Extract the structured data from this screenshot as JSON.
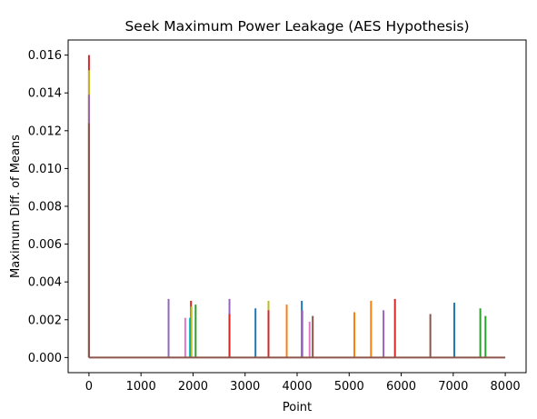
{
  "chart_data": {
    "type": "line",
    "title": "Seek Maximum Power Leakage (AES Hypothesis)",
    "xlabel": "Point",
    "ylabel": "Maximum Diff. of Means",
    "xlim": [
      -400,
      8400
    ],
    "ylim": [
      -0.0008,
      0.0168
    ],
    "x_ticks": [
      0,
      1000,
      2000,
      3000,
      4000,
      5000,
      6000,
      7000,
      8000
    ],
    "y_ticks": [
      0.0,
      0.002,
      0.004,
      0.006,
      0.008,
      0.01,
      0.012,
      0.014,
      0.016
    ],
    "x_tick_labels": [
      "0",
      "1000",
      "2000",
      "3000",
      "4000",
      "5000",
      "6000",
      "7000",
      "8000"
    ],
    "y_tick_labels": [
      "0.000",
      "0.002",
      "0.004",
      "0.006",
      "0.008",
      "0.010",
      "0.012",
      "0.014",
      "0.016"
    ],
    "baseline": {
      "x": [
        0,
        8000
      ],
      "y": 0.0,
      "color": "#8c564b"
    },
    "grid": false,
    "series": [
      {
        "x": 0,
        "y": 0.016,
        "color": "#d62728"
      },
      {
        "x": 0,
        "y": 0.0152,
        "color": "#bcbd22"
      },
      {
        "x": 0,
        "y": 0.0139,
        "color": "#9467bd"
      },
      {
        "x": 0,
        "y": 0.0124,
        "color": "#8c564b"
      },
      {
        "x": 1530,
        "y": 0.0031,
        "color": "#9467bd"
      },
      {
        "x": 1850,
        "y": 0.0021,
        "color": "#e377c2"
      },
      {
        "x": 1940,
        "y": 0.0021,
        "color": "#17becf"
      },
      {
        "x": 1960,
        "y": 0.003,
        "color": "#d62728"
      },
      {
        "x": 1970,
        "y": 0.0027,
        "color": "#bcbd22"
      },
      {
        "x": 2050,
        "y": 0.0028,
        "color": "#2ca02c"
      },
      {
        "x": 2700,
        "y": 0.0031,
        "color": "#9467bd"
      },
      {
        "x": 2700,
        "y": 0.0023,
        "color": "#d62728"
      },
      {
        "x": 3200,
        "y": 0.0026,
        "color": "#1f77b4"
      },
      {
        "x": 3450,
        "y": 0.003,
        "color": "#bcbd22"
      },
      {
        "x": 3450,
        "y": 0.0025,
        "color": "#d62728"
      },
      {
        "x": 3800,
        "y": 0.0028,
        "color": "#ff7f0e"
      },
      {
        "x": 4090,
        "y": 0.003,
        "color": "#1f77b4"
      },
      {
        "x": 4100,
        "y": 0.0025,
        "color": "#9467bd"
      },
      {
        "x": 4240,
        "y": 0.0019,
        "color": "#e377c2"
      },
      {
        "x": 4300,
        "y": 0.0022,
        "color": "#8c564b"
      },
      {
        "x": 5100,
        "y": 0.0024,
        "color": "#ff7f0e"
      },
      {
        "x": 5420,
        "y": 0.003,
        "color": "#ff7f0e"
      },
      {
        "x": 5660,
        "y": 0.0025,
        "color": "#9467bd"
      },
      {
        "x": 5880,
        "y": 0.0031,
        "color": "#d62728"
      },
      {
        "x": 6560,
        "y": 0.0023,
        "color": "#8c564b"
      },
      {
        "x": 7020,
        "y": 0.0029,
        "color": "#1f77b4"
      },
      {
        "x": 7520,
        "y": 0.0026,
        "color": "#2ca02c"
      },
      {
        "x": 7620,
        "y": 0.0022,
        "color": "#2ca02c"
      }
    ]
  }
}
